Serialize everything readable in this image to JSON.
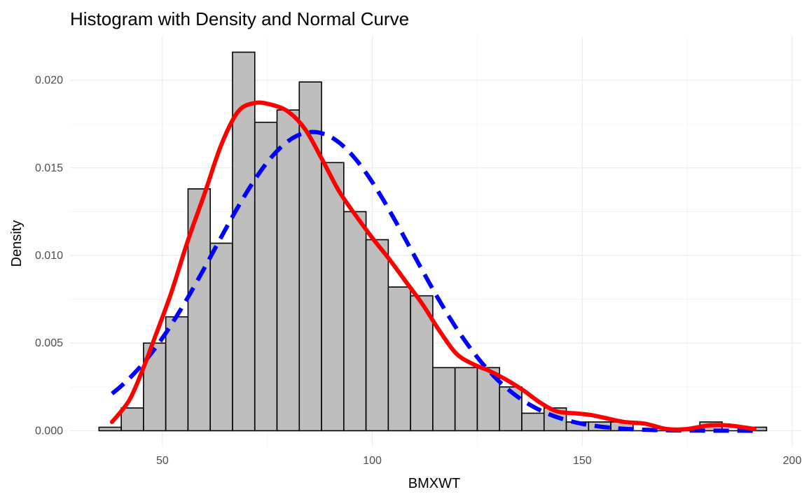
{
  "chart_data": {
    "type": "bar",
    "title": "Histogram with Density and Normal Curve",
    "xlabel": "BMXWT",
    "ylabel": "Density",
    "xlim": [
      28,
      202
    ],
    "ylim": [
      -0.0009,
      0.0225
    ],
    "x_ticks": [
      50,
      100,
      150,
      200
    ],
    "x_tick_labels": [
      "50",
      "100",
      "150",
      "200"
    ],
    "y_ticks": [
      0,
      0.005,
      0.01,
      0.015,
      0.02
    ],
    "y_tick_labels": [
      "0.000",
      "0.005",
      "0.010",
      "0.015",
      "0.020"
    ],
    "grid": true,
    "colors": {
      "bar_fill": "#bebebe",
      "bar_outline": "#000000",
      "density_curve": "#ff0000",
      "normal_curve": "#0000ff",
      "grid": "#ebebeb"
    },
    "histogram": {
      "bin_edges": [
        34.9,
        40.2,
        45.5,
        50.8,
        56.1,
        61.4,
        66.7,
        72.0,
        77.3,
        82.6,
        87.9,
        93.2,
        98.5,
        103.8,
        109.1,
        114.4,
        119.7,
        125.0,
        130.3,
        135.6,
        140.9,
        146.2,
        151.5,
        156.8,
        162.1,
        167.4,
        172.7,
        178.0,
        183.3,
        188.6,
        193.9
      ],
      "values": [
        0.0002,
        0.0013,
        0.005,
        0.0065,
        0.0138,
        0.0107,
        0.0216,
        0.0176,
        0.0183,
        0.0199,
        0.0153,
        0.0125,
        0.0109,
        0.0082,
        0.0077,
        0.0036,
        0.0036,
        0.0036,
        0.0025,
        0.001,
        0.0013,
        0.0005,
        0.0005,
        0.0005,
        0.0,
        0.0,
        0.0,
        0.0005,
        0.0,
        0.0002
      ]
    },
    "series": [
      {
        "kind": "kernel density",
        "x": [
          38,
          42,
          45,
          48,
          52,
          56,
          60,
          64,
          68,
          72,
          76,
          80,
          84,
          88,
          92,
          96,
          100,
          104,
          108,
          112,
          116,
          120,
          124,
          128,
          132,
          136,
          140,
          144,
          148,
          152,
          156,
          160,
          165,
          170,
          175,
          180,
          185,
          191
        ],
        "y": [
          0.0005,
          0.0017,
          0.0033,
          0.0052,
          0.0078,
          0.0108,
          0.0135,
          0.0163,
          0.0182,
          0.0187,
          0.0186,
          0.0182,
          0.0172,
          0.0155,
          0.0137,
          0.0123,
          0.011,
          0.0098,
          0.0085,
          0.0072,
          0.0057,
          0.0044,
          0.0038,
          0.0034,
          0.0029,
          0.0023,
          0.0016,
          0.0011,
          0.001,
          0.0009,
          0.0007,
          0.0005,
          0.0004,
          0.0001,
          0.0001,
          0.0003,
          0.0003,
          0.0001
        ]
      },
      {
        "kind": "normal",
        "mean": 85.8,
        "sd": 23.4,
        "x_range": [
          38,
          191
        ]
      }
    ]
  }
}
